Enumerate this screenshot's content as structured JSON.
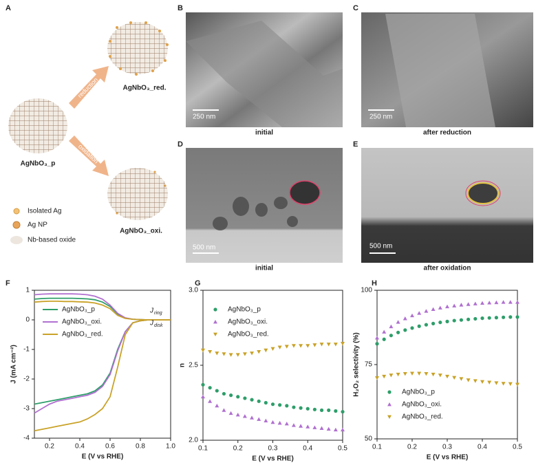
{
  "panel_labels": [
    "A",
    "B",
    "C",
    "D",
    "E",
    "F",
    "G",
    "H"
  ],
  "schematic": {
    "center": "AgNbO₃_p",
    "reduced": "AgNbO₃_red.",
    "oxidized": "AgNbO₃_oxi.",
    "arrow_up": "reduction",
    "arrow_down": "oxidation",
    "legend": [
      "Isolated Ag",
      "Ag NP",
      "Nb-based oxide"
    ]
  },
  "images": [
    {
      "scale": "250 nm",
      "caption": "initial"
    },
    {
      "scale": "250 nm",
      "caption": "after reduction"
    },
    {
      "scale": "500 nm",
      "caption": "initial"
    },
    {
      "scale": "500 nm",
      "caption": "after oxidation"
    }
  ],
  "chart_data": [
    {
      "type": "line",
      "xlabel": "E (V vs RHE)",
      "ylabel": "J (mA cm⁻²)",
      "x": [
        0.1,
        0.15,
        0.2,
        0.25,
        0.3,
        0.35,
        0.4,
        0.45,
        0.5,
        0.55,
        0.6,
        0.65,
        0.7,
        0.75,
        0.8,
        0.85,
        0.9,
        0.95,
        1.0
      ],
      "xlim": [
        0.1,
        1.0
      ],
      "xticks": [
        0.2,
        0.4,
        0.6,
        0.8,
        {
          "value": 1,
          "label": "1.0"
        }
      ],
      "ylim": [
        -4,
        1
      ],
      "yticks": [
        -4,
        -3,
        -2,
        -1,
        0,
        1
      ],
      "legend": "upper left",
      "annotations": [
        {
          "text": "J",
          "sub": "ring"
        },
        {
          "text": "J",
          "sub": "disk"
        }
      ],
      "series": [
        {
          "name": "AgNbO₃_p",
          "color": "#2e9e6a",
          "values": [
            -2.85,
            -2.8,
            -2.75,
            -2.7,
            -2.65,
            -2.6,
            -2.55,
            -2.5,
            -2.4,
            -2.2,
            -1.8,
            -1.0,
            -0.4,
            -0.1,
            -0.03,
            0,
            0,
            0,
            0
          ],
          "ring": [
            0.7,
            0.72,
            0.73,
            0.73,
            0.73,
            0.73,
            0.72,
            0.71,
            0.68,
            0.6,
            0.45,
            0.2,
            0.06,
            0.02,
            0.01,
            0,
            0,
            0,
            0
          ]
        },
        {
          "name": "AgNbO₃_oxi.",
          "color": "#b070d0",
          "values": [
            -3.15,
            -3.0,
            -2.85,
            -2.75,
            -2.7,
            -2.65,
            -2.6,
            -2.55,
            -2.45,
            -2.25,
            -1.85,
            -1.05,
            -0.4,
            -0.1,
            -0.03,
            0,
            0,
            0,
            0
          ],
          "ring": [
            0.85,
            0.87,
            0.88,
            0.88,
            0.88,
            0.88,
            0.87,
            0.85,
            0.8,
            0.7,
            0.5,
            0.22,
            0.07,
            0.02,
            0.01,
            0,
            0,
            0,
            0
          ]
        },
        {
          "name": "AgNbO₃_red.",
          "color": "#c9a227",
          "values": [
            -3.75,
            -3.7,
            -3.65,
            -3.6,
            -3.55,
            -3.5,
            -3.45,
            -3.35,
            -3.2,
            -3.0,
            -2.6,
            -1.6,
            -0.5,
            -0.1,
            -0.03,
            0,
            0,
            0,
            0
          ],
          "ring": [
            0.6,
            0.62,
            0.63,
            0.63,
            0.62,
            0.62,
            0.61,
            0.6,
            0.57,
            0.5,
            0.38,
            0.15,
            0.05,
            0.02,
            0.01,
            0,
            0,
            0,
            0
          ]
        }
      ]
    },
    {
      "type": "scatter",
      "xlabel": "E (V vs RHE)",
      "ylabel": "n",
      "x": [
        0.1,
        0.12,
        0.14,
        0.16,
        0.18,
        0.2,
        0.22,
        0.24,
        0.26,
        0.28,
        0.3,
        0.32,
        0.34,
        0.36,
        0.38,
        0.4,
        0.42,
        0.44,
        0.46,
        0.48,
        0.5
      ],
      "xlim": [
        0.1,
        0.5
      ],
      "xticks": [
        0.1,
        0.2,
        0.3,
        0.4,
        0.5
      ],
      "ylim": [
        2,
        3
      ],
      "yticks": [
        {
          "value": 2,
          "label": "2.0"
        },
        2.5,
        {
          "value": 3,
          "label": "3.0"
        }
      ],
      "legend": "upper left",
      "series": [
        {
          "name": "AgNbO₃_p",
          "color": "#2e9e6a",
          "marker": "circle",
          "values": [
            2.37,
            2.35,
            2.33,
            2.31,
            2.3,
            2.29,
            2.28,
            2.27,
            2.26,
            2.25,
            2.24,
            2.235,
            2.23,
            2.22,
            2.215,
            2.21,
            2.205,
            2.2,
            2.2,
            2.195,
            2.19
          ]
        },
        {
          "name": "AgNbO₃_oxi.",
          "color": "#b070d0",
          "marker": "triangle-up",
          "values": [
            2.29,
            2.26,
            2.23,
            2.2,
            2.18,
            2.17,
            2.16,
            2.15,
            2.14,
            2.13,
            2.12,
            2.115,
            2.11,
            2.1,
            2.095,
            2.09,
            2.085,
            2.08,
            2.075,
            2.07,
            2.07
          ]
        },
        {
          "name": "AgNbO₃_red.",
          "color": "#c9a227",
          "marker": "triangle-down",
          "values": [
            2.6,
            2.59,
            2.58,
            2.575,
            2.57,
            2.57,
            2.575,
            2.58,
            2.59,
            2.6,
            2.61,
            2.62,
            2.625,
            2.63,
            2.63,
            2.63,
            2.635,
            2.64,
            2.64,
            2.64,
            2.645
          ]
        }
      ]
    },
    {
      "type": "scatter",
      "xlabel": "E (V vs RHE)",
      "ylabel": "H₂O₂ selectivity (%)",
      "x": [
        0.1,
        0.12,
        0.14,
        0.16,
        0.18,
        0.2,
        0.22,
        0.24,
        0.26,
        0.28,
        0.3,
        0.32,
        0.34,
        0.36,
        0.38,
        0.4,
        0.42,
        0.44,
        0.46,
        0.48,
        0.5
      ],
      "xlim": [
        0.1,
        0.5
      ],
      "xticks": [
        0.1,
        0.2,
        0.3,
        0.4,
        0.5
      ],
      "ylim": [
        50,
        100
      ],
      "yticks": [
        50,
        75,
        100
      ],
      "legend": "lower left",
      "series": [
        {
          "name": "AgNbO₃_p",
          "color": "#2e9e6a",
          "marker": "circle",
          "values": [
            82,
            83.5,
            84.8,
            85.8,
            86.6,
            87.3,
            87.9,
            88.4,
            88.8,
            89.2,
            89.5,
            89.8,
            90.0,
            90.2,
            90.4,
            90.6,
            90.7,
            90.8,
            90.9,
            91.0,
            91.0
          ]
        },
        {
          "name": "AgNbO₃_oxi.",
          "color": "#b070d0",
          "marker": "triangle-up",
          "values": [
            84,
            86,
            87.8,
            89.3,
            90.5,
            91.5,
            92.3,
            93,
            93.6,
            94.1,
            94.5,
            94.8,
            95.1,
            95.3,
            95.5,
            95.7,
            95.8,
            95.9,
            96,
            96,
            96
          ]
        },
        {
          "name": "AgNbO₃_red.",
          "color": "#c9a227",
          "marker": "triangle-down",
          "values": [
            70.5,
            71,
            71.4,
            71.7,
            71.9,
            72,
            72,
            71.9,
            71.7,
            71.4,
            71,
            70.6,
            70.2,
            69.8,
            69.5,
            69.2,
            69,
            68.8,
            68.6,
            68.5,
            68.3
          ]
        }
      ]
    }
  ]
}
